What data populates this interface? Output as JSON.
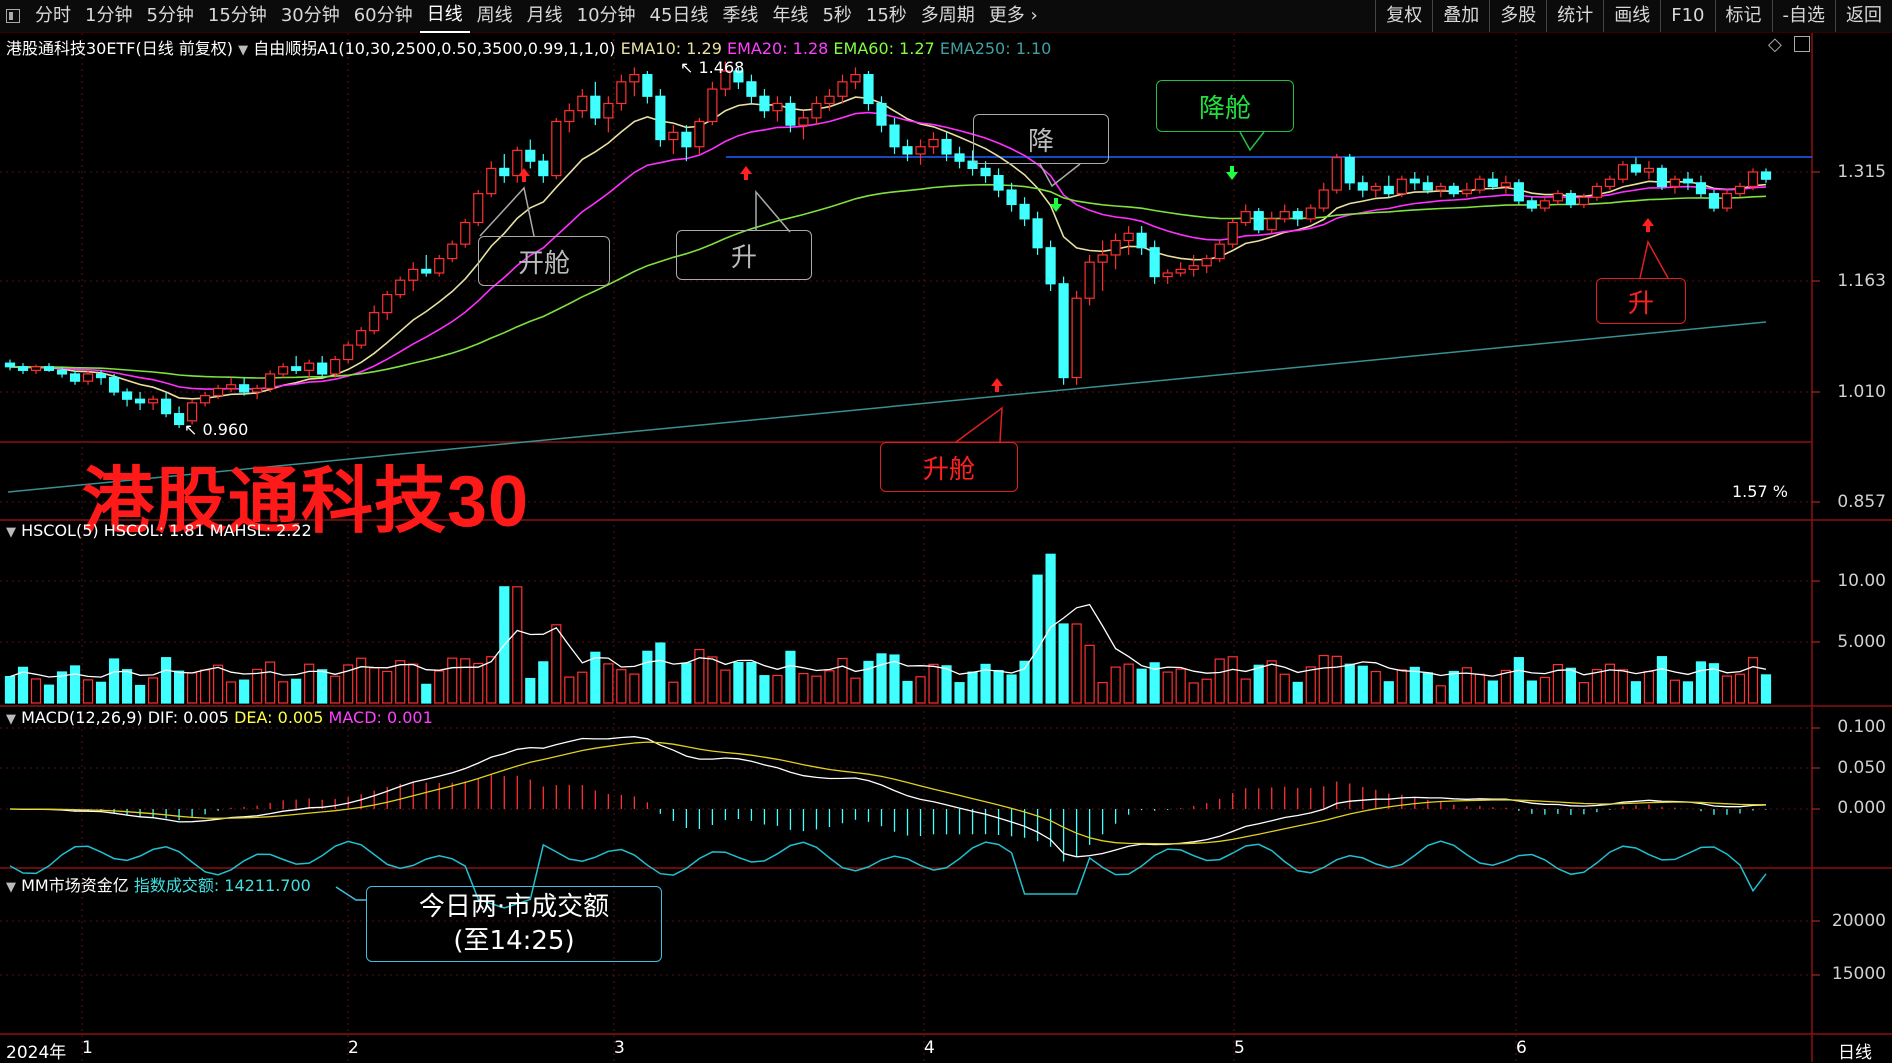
{
  "toolbar": {
    "periods": [
      "分时",
      "1分钟",
      "5分钟",
      "15分钟",
      "30分钟",
      "60分钟",
      "日线",
      "周线",
      "月线",
      "10分钟",
      "45日线",
      "季线",
      "年线",
      "5秒",
      "15秒",
      "多周期",
      "更多"
    ],
    "active": "日线",
    "right": [
      "复权",
      "叠加",
      "多股",
      "统计",
      "画线",
      "F10",
      "标记",
      "-自选",
      "返回"
    ]
  },
  "main_legend": {
    "title": "港股通科技30ETF(日线 前复权)",
    "indicator": "自由顺拐A1(10,30,2500,0.50,3500,0.99,1,1,0)",
    "ema10": "EMA10: 1.29",
    "ema20": "EMA20: 1.28",
    "ema60": "EMA60: 1.27",
    "ema250": "EMA250: 1.10"
  },
  "main_axis": [
    "1.315",
    "1.163",
    "1.010",
    "0.857"
  ],
  "annotations": {
    "high": "1.468",
    "low": "0.960",
    "pct": "1.57 %",
    "kaicang": "开舱",
    "sheng1": "升",
    "jiang": "降",
    "jiangcang": "降舱",
    "shengcang": "升舱",
    "sheng2": "升"
  },
  "big_title": "港股通科技30",
  "vol_legend": {
    "name": "HSCOL(5)",
    "v1": "HSCOL: 1.81",
    "v2": "MAHSL: 2.22"
  },
  "vol_axis": [
    "10.00",
    "5.000"
  ],
  "macd_legend": {
    "name": "MACD(12,26,9)",
    "dif": "DIF: 0.005",
    "dea": "DEA: 0.005",
    "macd": "MACD: 0.001"
  },
  "macd_axis": [
    "0.100",
    "0.050",
    "0.000"
  ],
  "mm_legend": {
    "name": "MM市场资金亿",
    "value": "指数成交额: 14211.700"
  },
  "mm_axis": [
    "20000",
    "15000"
  ],
  "mm_bubble": {
    "line1": "今日两·市成交额",
    "line2": "(至14:25)"
  },
  "x_axis": {
    "year": "2024年",
    "months": [
      "1",
      "2",
      "3",
      "4",
      "5",
      "6"
    ],
    "period": "日线"
  },
  "chart_data": {
    "type": "candlestick",
    "candles": [
      [
        1.05,
        1.055,
        1.04,
        1.045
      ],
      [
        1.045,
        1.05,
        1.035,
        1.04
      ],
      [
        1.04,
        1.048,
        1.035,
        1.045
      ],
      [
        1.045,
        1.05,
        1.038,
        1.04
      ],
      [
        1.04,
        1.045,
        1.03,
        1.035
      ],
      [
        1.035,
        1.04,
        1.02,
        1.025
      ],
      [
        1.025,
        1.04,
        1.02,
        1.035
      ],
      [
        1.035,
        1.04,
        1.02,
        1.03
      ],
      [
        1.03,
        1.035,
        1.005,
        1.01
      ],
      [
        1.01,
        1.015,
        0.99,
        1.0
      ],
      [
        1.0,
        1.01,
        0.985,
        0.995
      ],
      [
        0.995,
        1.005,
        0.985,
        1.0
      ],
      [
        1.0,
        1.01,
        0.975,
        0.98
      ],
      [
        0.98,
        0.99,
        0.96,
        0.965
      ],
      [
        0.97,
        1.0,
        0.965,
        0.995
      ],
      [
        0.995,
        1.01,
        0.99,
        1.005
      ],
      [
        1.005,
        1.02,
        1.0,
        1.015
      ],
      [
        1.015,
        1.03,
        1.01,
        1.02
      ],
      [
        1.02,
        1.03,
        1.005,
        1.01
      ],
      [
        1.01,
        1.02,
        1.0,
        1.015
      ],
      [
        1.015,
        1.04,
        1.01,
        1.035
      ],
      [
        1.035,
        1.05,
        1.03,
        1.045
      ],
      [
        1.045,
        1.06,
        1.035,
        1.04
      ],
      [
        1.04,
        1.055,
        1.03,
        1.05
      ],
      [
        1.05,
        1.06,
        1.03,
        1.035
      ],
      [
        1.035,
        1.06,
        1.03,
        1.055
      ],
      [
        1.055,
        1.08,
        1.05,
        1.075
      ],
      [
        1.075,
        1.1,
        1.07,
        1.095
      ],
      [
        1.095,
        1.13,
        1.09,
        1.12
      ],
      [
        1.12,
        1.15,
        1.11,
        1.145
      ],
      [
        1.145,
        1.17,
        1.14,
        1.165
      ],
      [
        1.165,
        1.19,
        1.15,
        1.18
      ],
      [
        1.18,
        1.2,
        1.17,
        1.175
      ],
      [
        1.175,
        1.2,
        1.17,
        1.195
      ],
      [
        1.195,
        1.22,
        1.19,
        1.215
      ],
      [
        1.215,
        1.25,
        1.21,
        1.245
      ],
      [
        1.245,
        1.29,
        1.24,
        1.285
      ],
      [
        1.285,
        1.33,
        1.28,
        1.32
      ],
      [
        1.32,
        1.34,
        1.3,
        1.31
      ],
      [
        1.31,
        1.35,
        1.3,
        1.345
      ],
      [
        1.345,
        1.36,
        1.32,
        1.33
      ],
      [
        1.33,
        1.34,
        1.3,
        1.31
      ],
      [
        1.31,
        1.39,
        1.305,
        1.385
      ],
      [
        1.385,
        1.41,
        1.37,
        1.4
      ],
      [
        1.4,
        1.43,
        1.39,
        1.42
      ],
      [
        1.42,
        1.44,
        1.38,
        1.39
      ],
      [
        1.39,
        1.42,
        1.37,
        1.41
      ],
      [
        1.41,
        1.45,
        1.4,
        1.44
      ],
      [
        1.44,
        1.46,
        1.42,
        1.45
      ],
      [
        1.45,
        1.455,
        1.41,
        1.42
      ],
      [
        1.42,
        1.43,
        1.35,
        1.36
      ],
      [
        1.36,
        1.38,
        1.34,
        1.37
      ],
      [
        1.37,
        1.38,
        1.33,
        1.35
      ],
      [
        1.35,
        1.39,
        1.34,
        1.385
      ],
      [
        1.385,
        1.44,
        1.38,
        1.43
      ],
      [
        1.43,
        1.468,
        1.42,
        1.455
      ],
      [
        1.455,
        1.46,
        1.43,
        1.44
      ],
      [
        1.44,
        1.45,
        1.41,
        1.42
      ],
      [
        1.42,
        1.43,
        1.39,
        1.4
      ],
      [
        1.4,
        1.42,
        1.385,
        1.41
      ],
      [
        1.41,
        1.42,
        1.37,
        1.38
      ],
      [
        1.38,
        1.4,
        1.36,
        1.39
      ],
      [
        1.39,
        1.42,
        1.38,
        1.41
      ],
      [
        1.41,
        1.43,
        1.4,
        1.42
      ],
      [
        1.42,
        1.45,
        1.41,
        1.44
      ],
      [
        1.44,
        1.46,
        1.43,
        1.45
      ],
      [
        1.45,
        1.455,
        1.4,
        1.41
      ],
      [
        1.41,
        1.42,
        1.37,
        1.38
      ],
      [
        1.38,
        1.39,
        1.34,
        1.35
      ],
      [
        1.35,
        1.36,
        1.33,
        1.34
      ],
      [
        1.34,
        1.36,
        1.325,
        1.35
      ],
      [
        1.35,
        1.37,
        1.34,
        1.36
      ],
      [
        1.36,
        1.37,
        1.33,
        1.34
      ],
      [
        1.34,
        1.35,
        1.32,
        1.33
      ],
      [
        1.33,
        1.345,
        1.31,
        1.32
      ],
      [
        1.32,
        1.33,
        1.3,
        1.31
      ],
      [
        1.31,
        1.32,
        1.28,
        1.29
      ],
      [
        1.29,
        1.3,
        1.26,
        1.27
      ],
      [
        1.27,
        1.28,
        1.24,
        1.25
      ],
      [
        1.25,
        1.26,
        1.2,
        1.21
      ],
      [
        1.21,
        1.22,
        1.15,
        1.16
      ],
      [
        1.16,
        1.17,
        1.02,
        1.03
      ],
      [
        1.03,
        1.15,
        1.02,
        1.14
      ],
      [
        1.14,
        1.2,
        1.13,
        1.19
      ],
      [
        1.19,
        1.22,
        1.15,
        1.2
      ],
      [
        1.2,
        1.23,
        1.18,
        1.22
      ],
      [
        1.22,
        1.24,
        1.2,
        1.23
      ],
      [
        1.23,
        1.24,
        1.2,
        1.21
      ],
      [
        1.21,
        1.22,
        1.16,
        1.17
      ],
      [
        1.17,
        1.18,
        1.16,
        1.175
      ],
      [
        1.175,
        1.19,
        1.17,
        1.18
      ],
      [
        1.18,
        1.2,
        1.17,
        1.185
      ],
      [
        1.185,
        1.2,
        1.175,
        1.195
      ],
      [
        1.195,
        1.22,
        1.19,
        1.215
      ],
      [
        1.215,
        1.25,
        1.21,
        1.245
      ],
      [
        1.245,
        1.27,
        1.24,
        1.26
      ],
      [
        1.26,
        1.265,
        1.23,
        1.235
      ],
      [
        1.235,
        1.26,
        1.23,
        1.25
      ],
      [
        1.25,
        1.27,
        1.245,
        1.26
      ],
      [
        1.26,
        1.265,
        1.24,
        1.25
      ],
      [
        1.25,
        1.27,
        1.245,
        1.265
      ],
      [
        1.265,
        1.3,
        1.26,
        1.29
      ],
      [
        1.29,
        1.34,
        1.285,
        1.335
      ],
      [
        1.335,
        1.34,
        1.29,
        1.3
      ],
      [
        1.3,
        1.31,
        1.28,
        1.29
      ],
      [
        1.29,
        1.3,
        1.28,
        1.295
      ],
      [
        1.295,
        1.31,
        1.28,
        1.285
      ],
      [
        1.285,
        1.31,
        1.28,
        1.305
      ],
      [
        1.305,
        1.315,
        1.29,
        1.3
      ],
      [
        1.3,
        1.31,
        1.285,
        1.29
      ],
      [
        1.29,
        1.3,
        1.28,
        1.295
      ],
      [
        1.295,
        1.3,
        1.28,
        1.285
      ],
      [
        1.285,
        1.3,
        1.28,
        1.29
      ],
      [
        1.29,
        1.31,
        1.285,
        1.305
      ],
      [
        1.305,
        1.315,
        1.29,
        1.295
      ],
      [
        1.295,
        1.31,
        1.285,
        1.3
      ],
      [
        1.3,
        1.305,
        1.27,
        1.275
      ],
      [
        1.275,
        1.28,
        1.26,
        1.265
      ],
      [
        1.265,
        1.28,
        1.26,
        1.275
      ],
      [
        1.275,
        1.29,
        1.27,
        1.285
      ],
      [
        1.285,
        1.29,
        1.265,
        1.27
      ],
      [
        1.27,
        1.285,
        1.265,
        1.28
      ],
      [
        1.28,
        1.3,
        1.275,
        1.295
      ],
      [
        1.295,
        1.31,
        1.29,
        1.305
      ],
      [
        1.305,
        1.33,
        1.3,
        1.325
      ],
      [
        1.325,
        1.335,
        1.31,
        1.315
      ],
      [
        1.315,
        1.33,
        1.305,
        1.32
      ],
      [
        1.32,
        1.325,
        1.29,
        1.295
      ],
      [
        1.295,
        1.31,
        1.285,
        1.305
      ],
      [
        1.305,
        1.315,
        1.29,
        1.3
      ],
      [
        1.3,
        1.31,
        1.28,
        1.285
      ],
      [
        1.285,
        1.29,
        1.26,
        1.265
      ],
      [
        1.265,
        1.29,
        1.26,
        1.285
      ],
      [
        1.285,
        1.3,
        1.28,
        1.295
      ],
      [
        1.295,
        1.32,
        1.29,
        1.315
      ],
      [
        1.315,
        1.32,
        1.3,
        1.305
      ]
    ]
  }
}
